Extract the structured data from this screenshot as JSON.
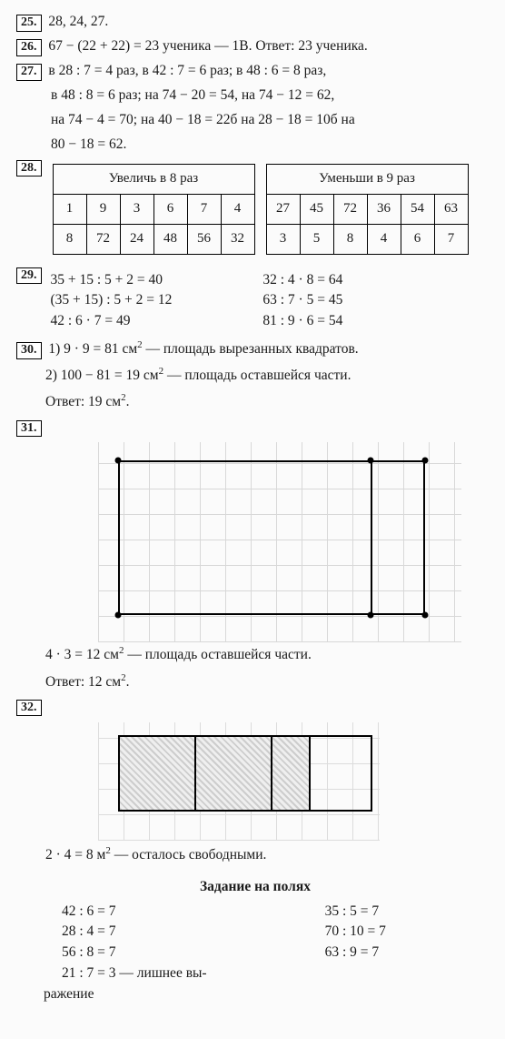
{
  "p25": {
    "num": "25.",
    "text": "28, 24, 27."
  },
  "p26": {
    "num": "26.",
    "text": "67 − (22 + 22) = 23 ученика — 1В. Ответ: 23 ученика."
  },
  "p27": {
    "num": "27.",
    "l1": "в 28 : 7 = 4 раз, в 42 : 7 = 6 раз; в 48 : 6 = 8 раз,",
    "l2": "в 48 : 8 = 6 раз; на 74 − 20 = 54, на 74 − 12 = 62,",
    "l3": "на 74 − 4 = 70; на 40 − 18 = 22б на 28 − 18 = 10б на",
    "l4": "80 − 18 = 62."
  },
  "p28": {
    "num": "28.",
    "t1_head": "Увеличь в 8 раз",
    "t1_r1": [
      "1",
      "9",
      "3",
      "6",
      "7",
      "4"
    ],
    "t1_r2": [
      "8",
      "72",
      "24",
      "48",
      "56",
      "32"
    ],
    "t2_head": "Уменьши в 9 раз",
    "t2_r1": [
      "27",
      "45",
      "72",
      "36",
      "54",
      "63"
    ],
    "t2_r2": [
      "3",
      "5",
      "8",
      "4",
      "6",
      "7"
    ]
  },
  "p29": {
    "num": "29.",
    "left": [
      "35 + 15 : 5 + 2 = 40",
      "(35 + 15) : 5 + 2 = 12",
      "42 : 6 · 7 = 49"
    ],
    "right": [
      "32 : 4 · 8 = 64",
      "63 : 7 · 5 = 45",
      "81 : 9 · 6 = 54"
    ]
  },
  "p30": {
    "num": "30.",
    "l1a": "1) 9 · 9 = 81 см",
    "l1b": " — площадь вырезанных квадратов.",
    "l2a": "2) 100 − 81 = 19 см",
    "l2b": " — площадь оставшейся части.",
    "ans": "Ответ: 19 см",
    "sq": "2",
    "dot": "."
  },
  "p31": {
    "num": "31.",
    "l1a": "4 · 3 = 12 см",
    "l1b": " — площадь оставшейся части.",
    "ans": "Ответ: 12 см",
    "sq": "2",
    "dot": "."
  },
  "p32": {
    "num": "32.",
    "l1a": "2 · 4 = 8 м",
    "l1b": " — осталось свободными.",
    "sq": "2"
  },
  "margin": {
    "head": "Задание на полях",
    "left": [
      "42 : 6 = 7",
      "28 : 4 = 7",
      "56 : 8 = 7",
      "21 : 7 = 3 — лишнее вы-"
    ],
    "left_last": "ражение",
    "right": [
      "35 : 5 = 7",
      "70 : 10 = 7",
      "63 : 9 = 7"
    ]
  }
}
